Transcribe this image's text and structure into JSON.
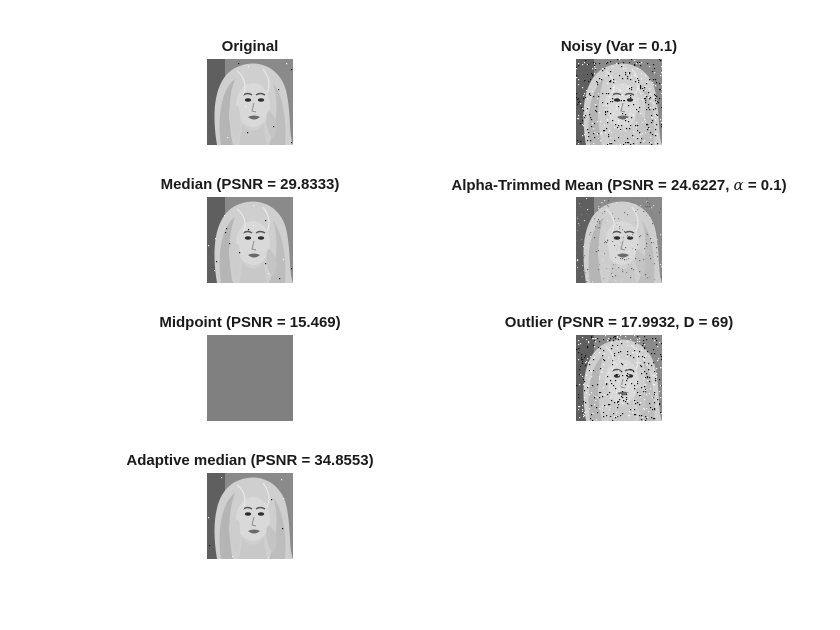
{
  "figure": {
    "panels": [
      {
        "id": "original",
        "title": "Original",
        "image": "portrait-grayscale",
        "variant": "clean"
      },
      {
        "id": "noisy",
        "title": "Noisy (Var = 0.1)",
        "image": "portrait-grayscale",
        "variant": "noisy"
      },
      {
        "id": "median",
        "title": "Median (PSNR = 29.8333)",
        "image": "portrait-grayscale",
        "variant": "slight"
      },
      {
        "id": "alpha-trimmed",
        "title_prefix": "Alpha-Trimmed Mean (PSNR = 24.6227, ",
        "title_greek": "α",
        "title_suffix": " = 0.1)",
        "image": "portrait-grayscale",
        "variant": "grainy"
      },
      {
        "id": "midpoint",
        "title": "Midpoint (PSNR = 15.469)",
        "image": "flat-gray",
        "variant": "flat",
        "fill": "#808080"
      },
      {
        "id": "outlier",
        "title": "Outlier (PSNR = 17.9932, D = 69)",
        "image": "portrait-grayscale",
        "variant": "noisy"
      },
      {
        "id": "adaptive-median",
        "title": "Adaptive median (PSNR = 34.8553)",
        "image": "portrait-grayscale",
        "variant": "clean"
      }
    ]
  }
}
